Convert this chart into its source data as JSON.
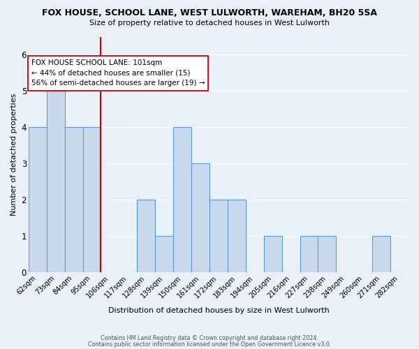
{
  "title": "FOX HOUSE, SCHOOL LANE, WEST LULWORTH, WAREHAM, BH20 5SA",
  "subtitle": "Size of property relative to detached houses in West Lulworth",
  "xlabel": "Distribution of detached houses by size in West Lulworth",
  "ylabel": "Number of detached properties",
  "categories": [
    "62sqm",
    "73sqm",
    "84sqm",
    "95sqm",
    "106sqm",
    "117sqm",
    "128sqm",
    "139sqm",
    "150sqm",
    "161sqm",
    "172sqm",
    "183sqm",
    "194sqm",
    "205sqm",
    "216sqm",
    "227sqm",
    "238sqm",
    "249sqm",
    "260sqm",
    "271sqm",
    "282sqm"
  ],
  "values": [
    4,
    5,
    4,
    4,
    0,
    0,
    2,
    1,
    4,
    3,
    2,
    2,
    0,
    1,
    0,
    1,
    1,
    0,
    0,
    1,
    0
  ],
  "bar_color": "#c9d9ec",
  "bar_edge_color": "#5b9bd5",
  "bar_edge_width": 0.8,
  "red_line_index": 4,
  "red_line_color": "#cc0000",
  "annotation_text": "FOX HOUSE SCHOOL LANE: 101sqm\n← 44% of detached houses are smaller (15)\n56% of semi-detached houses are larger (19) →",
  "annotation_box_color": "white",
  "annotation_box_edge_color": "#cc0000",
  "ylim": [
    0,
    6.5
  ],
  "yticks": [
    0,
    1,
    2,
    3,
    4,
    5,
    6
  ],
  "background_color": "#eaf0f8",
  "grid_color": "white",
  "footer_line1": "Contains HM Land Registry data © Crown copyright and database right 2024.",
  "footer_line2": "Contains public sector information licensed under the Open Government Licence v3.0."
}
